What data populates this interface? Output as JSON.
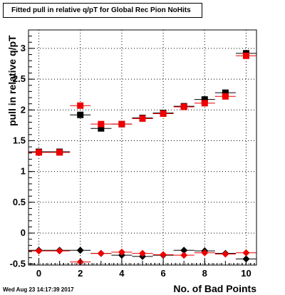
{
  "chart_data": {
    "type": "scatter",
    "title": "Fitted pull in relative q/pT for Global Rec Pion NoHits",
    "xlabel": "No. of Bad Points",
    "ylabel": "pull in relative q/pT",
    "timestamp": "Wed Aug 23 14:17:39 2017",
    "xlim": [
      -0.5,
      10.5
    ],
    "ylim": [
      -0.52,
      3.3
    ],
    "x_ticks": [
      "0",
      "2",
      "4",
      "6",
      "8",
      "10"
    ],
    "y_ticks": [
      "-0.5",
      "0",
      "0.5",
      "1",
      "1.5",
      "2",
      "2.5",
      "3"
    ],
    "grid": true,
    "series": [
      {
        "marker": "square",
        "color": "#000000",
        "x": [
          0,
          1,
          2,
          3,
          4,
          5,
          6,
          7,
          8,
          9,
          10
        ],
        "values": [
          1.32,
          1.32,
          1.92,
          1.7,
          1.77,
          1.87,
          1.95,
          2.06,
          2.17,
          2.28,
          2.92
        ]
      },
      {
        "marker": "square",
        "color": "#ee0000",
        "x": [
          0,
          1,
          2,
          3,
          4,
          5,
          6,
          7,
          8,
          9,
          10
        ],
        "values": [
          1.31,
          1.31,
          2.07,
          1.77,
          1.77,
          1.86,
          1.94,
          2.05,
          2.11,
          2.22,
          2.88
        ]
      },
      {
        "marker": "diamond",
        "color": "#000000",
        "x": [
          0,
          1,
          2,
          3,
          4,
          5,
          6,
          7,
          8,
          9,
          10
        ],
        "values": [
          -0.28,
          -0.28,
          -0.28,
          -0.33,
          -0.36,
          -0.38,
          -0.36,
          -0.28,
          -0.29,
          -0.33,
          -0.42
        ]
      },
      {
        "marker": "diamond",
        "color": "#ee0000",
        "x": [
          0,
          1,
          2,
          3,
          4,
          5,
          6,
          7,
          8,
          9,
          10
        ],
        "values": [
          -0.29,
          -0.29,
          -0.47,
          -0.33,
          -0.31,
          -0.33,
          -0.35,
          -0.36,
          -0.32,
          -0.34,
          -0.32
        ]
      }
    ]
  }
}
